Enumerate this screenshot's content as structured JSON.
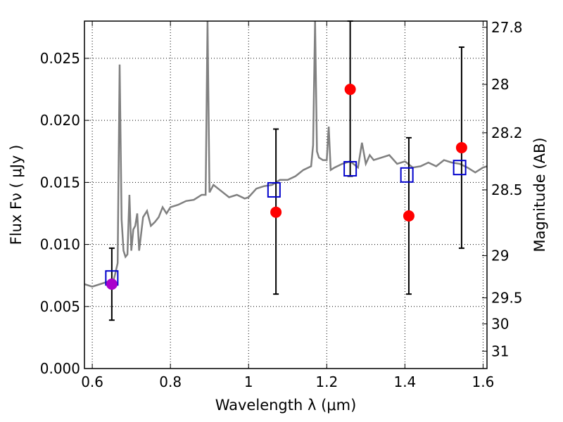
{
  "chart_data": {
    "type": "scatter",
    "xlabel": "Wavelength  λ (μm)",
    "ylabel": "Flux  Fν  ( μJy )",
    "y2label": "Magnitude (AB)",
    "xlim": [
      0.58,
      1.61
    ],
    "ylim": [
      0.0,
      0.028
    ],
    "grid": true,
    "x_ticks": [
      0.6,
      0.8,
      1.0,
      1.2,
      1.4,
      1.6
    ],
    "x_tick_labels": [
      "0.6",
      "0.8",
      "1",
      "1.2",
      "1.4",
      "1.6"
    ],
    "y_ticks": [
      0.0,
      0.005,
      0.01,
      0.015,
      0.02,
      0.025
    ],
    "y_tick_labels": [
      "0.000",
      "0.005",
      "0.010",
      "0.015",
      "0.020",
      "0.025"
    ],
    "mag_ticks": [
      {
        "label": "27.8",
        "flux": 0.0275
      },
      {
        "label": "28",
        "flux": 0.0229
      },
      {
        "label": "28.2",
        "flux": 0.019
      },
      {
        "label": "28.5",
        "flux": 0.0144
      },
      {
        "label": "29",
        "flux": 0.0091
      },
      {
        "label": "29.5",
        "flux": 0.0057
      },
      {
        "label": "30",
        "flux": 0.0036
      },
      {
        "label": "31",
        "flux": 0.0014
      }
    ],
    "colors": {
      "model": "#808080",
      "observed": "#ff0000",
      "synthetic": "#0000cc",
      "overlap": "#aa00cc",
      "errorbar": "#000000",
      "grid": "#000000"
    },
    "model_spectrum": {
      "x": [
        0.58,
        0.6,
        0.62,
        0.64,
        0.655,
        0.66,
        0.665,
        0.67,
        0.675,
        0.68,
        0.685,
        0.69,
        0.695,
        0.7,
        0.705,
        0.71,
        0.715,
        0.72,
        0.73,
        0.74,
        0.75,
        0.76,
        0.77,
        0.78,
        0.79,
        0.8,
        0.82,
        0.84,
        0.86,
        0.88,
        0.89,
        0.895,
        0.9,
        0.905,
        0.91,
        0.93,
        0.95,
        0.97,
        0.99,
        1.0,
        1.02,
        1.04,
        1.06,
        1.08,
        1.1,
        1.12,
        1.14,
        1.16,
        1.165,
        1.17,
        1.175,
        1.18,
        1.19,
        1.2,
        1.205,
        1.21,
        1.22,
        1.24,
        1.26,
        1.28,
        1.29,
        1.3,
        1.31,
        1.32,
        1.34,
        1.36,
        1.38,
        1.4,
        1.42,
        1.44,
        1.46,
        1.48,
        1.5,
        1.52,
        1.54,
        1.56,
        1.58,
        1.6,
        1.61
      ],
      "y": [
        0.0068,
        0.0066,
        0.0068,
        0.007,
        0.0072,
        0.0078,
        0.0085,
        0.0245,
        0.012,
        0.0095,
        0.009,
        0.0092,
        0.014,
        0.0095,
        0.0112,
        0.0115,
        0.0125,
        0.0095,
        0.0122,
        0.0127,
        0.0115,
        0.0118,
        0.0122,
        0.013,
        0.0125,
        0.013,
        0.0132,
        0.0135,
        0.0136,
        0.014,
        0.014,
        0.029,
        0.0142,
        0.0145,
        0.0148,
        0.0143,
        0.0138,
        0.014,
        0.0137,
        0.0138,
        0.0145,
        0.0147,
        0.0148,
        0.0152,
        0.0152,
        0.0155,
        0.016,
        0.0163,
        0.018,
        0.029,
        0.0175,
        0.017,
        0.0168,
        0.0168,
        0.0195,
        0.016,
        0.0162,
        0.0165,
        0.0167,
        0.0162,
        0.0182,
        0.0165,
        0.0172,
        0.0168,
        0.017,
        0.0172,
        0.0165,
        0.0167,
        0.0162,
        0.0163,
        0.0166,
        0.0163,
        0.0168,
        0.0166,
        0.0165,
        0.0162,
        0.0158,
        0.0162,
        0.0163
      ]
    },
    "observed": [
      {
        "x": 0.65,
        "y": 0.0068,
        "err_low": 0.0039,
        "err_high": 0.0097
      },
      {
        "x": 1.07,
        "y": 0.0126,
        "err_low": 0.006,
        "err_high": 0.0193
      },
      {
        "x": 1.26,
        "y": 0.0225,
        "err_low": 0.0155,
        "err_high": 0.028
      },
      {
        "x": 1.41,
        "y": 0.0123,
        "err_low": 0.006,
        "err_high": 0.0186
      },
      {
        "x": 1.545,
        "y": 0.0178,
        "err_low": 0.0097,
        "err_high": 0.0259
      }
    ],
    "synthetic": [
      {
        "x": 0.65,
        "y": 0.0073
      },
      {
        "x": 1.065,
        "y": 0.0144
      },
      {
        "x": 1.26,
        "y": 0.0161
      },
      {
        "x": 1.405,
        "y": 0.0156
      },
      {
        "x": 1.54,
        "y": 0.0162
      }
    ]
  }
}
